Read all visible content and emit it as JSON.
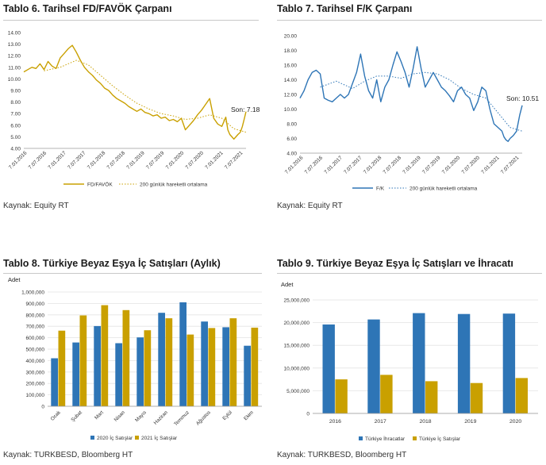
{
  "colors": {
    "gold": "#C9A000",
    "blue": "#2E75B6",
    "grid": "#e3e3e3",
    "axis": "#9a9a9a"
  },
  "panels": [
    {
      "title": "Tablo 6. Tarihsel FD/FAVÖK Çarpanı",
      "source": "Kaynak: Equity RT"
    },
    {
      "title": "Tablo 7. Tarihsel F/K Çarpanı",
      "source": "Kaynak: Equity RT"
    },
    {
      "title": "Tablo 8. Türkiye Beyaz Eşya İç Satışları (Aylık)",
      "source": "Kaynak: TURKBESD, Bloomberg HT"
    },
    {
      "title": "Tablo 9. Türkiye Beyaz Eşya İç Satışları ve İhracatı",
      "source": "Kaynak: TURKBESD, Bloomberg HT"
    }
  ],
  "chart_data": [
    {
      "type": "line",
      "ylim": [
        4,
        14
      ],
      "yticks": [
        "4.00",
        "5.00",
        "6.00",
        "7.00",
        "8.00",
        "9.00",
        "10.00",
        "11.00",
        "12.00",
        "13.00",
        "14.00"
      ],
      "xlim": [
        0,
        5.5
      ],
      "xticks": [
        "7.01.2016",
        "7.07.2016",
        "7.01.2017",
        "7.07.2017",
        "7.01.2018",
        "7.07.2018",
        "7.01.2019",
        "7.07.2019",
        "7.01.2020",
        "7.07.2020",
        "7.01.2021",
        "7.07.2021"
      ],
      "annotation": "Son: 7.18",
      "series": [
        {
          "name": "FD/FAVÖK",
          "style": "solid",
          "x": [
            0,
            0.1,
            0.2,
            0.3,
            0.4,
            0.5,
            0.6,
            0.7,
            0.8,
            0.9,
            1.0,
            1.1,
            1.2,
            1.3,
            1.4,
            1.5,
            1.6,
            1.7,
            1.8,
            1.9,
            2.0,
            2.1,
            2.2,
            2.3,
            2.4,
            2.5,
            2.6,
            2.7,
            2.8,
            2.9,
            3.0,
            3.1,
            3.2,
            3.3,
            3.4,
            3.5,
            3.6,
            3.7,
            3.8,
            3.9,
            4.0,
            4.1,
            4.2,
            4.3,
            4.4,
            4.5,
            4.6,
            4.7,
            4.8,
            4.9,
            5.0,
            5.05,
            5.1,
            5.15,
            5.2,
            5.25,
            5.3,
            5.36
          ],
          "y": [
            10.6,
            10.8,
            11.0,
            10.9,
            11.3,
            10.8,
            11.5,
            11.1,
            10.9,
            11.8,
            12.2,
            12.6,
            12.9,
            12.3,
            11.6,
            11.0,
            10.6,
            10.3,
            9.9,
            9.6,
            9.2,
            9.0,
            8.6,
            8.3,
            8.1,
            7.9,
            7.6,
            7.4,
            7.2,
            7.4,
            7.1,
            7.0,
            6.8,
            6.9,
            6.6,
            6.7,
            6.4,
            6.5,
            6.3,
            6.6,
            5.6,
            6.0,
            6.4,
            6.9,
            7.3,
            7.8,
            8.3,
            6.6,
            6.1,
            5.9,
            6.7,
            5.6,
            5.2,
            5.0,
            4.8,
            5.0,
            5.2,
            5.4
          ],
          "tail_x": [
            5.36,
            5.41,
            5.46,
            5.5
          ],
          "tail_y": [
            5.4,
            5.9,
            6.6,
            7.18
          ]
        },
        {
          "name": "200 günlük hareketli ortalama",
          "style": "dotted",
          "x": [
            0.5,
            0.9,
            1.3,
            1.6,
            1.9,
            2.2,
            2.5,
            2.8,
            3.1,
            3.4,
            3.7,
            4.0,
            4.3,
            4.6,
            4.9,
            5.2,
            5.5
          ],
          "y": [
            10.7,
            11.0,
            11.6,
            11.2,
            10.3,
            9.4,
            8.6,
            7.9,
            7.4,
            7.0,
            6.8,
            6.5,
            6.6,
            6.9,
            6.6,
            5.7,
            5.4
          ]
        }
      ]
    },
    {
      "type": "line",
      "ylim": [
        4,
        20
      ],
      "yticks": [
        "4.00",
        "6.00",
        "8.00",
        "10.00",
        "12.00",
        "14.00",
        "16.00",
        "18.00",
        "20.00"
      ],
      "xlim": [
        0,
        5.5
      ],
      "xticks": [
        "7.01.2016",
        "7.07.2016",
        "7.01.2017",
        "7.07.2017",
        "7.01.2018",
        "7.07.2018",
        "7.01.2019",
        "7.07.2019",
        "7.01.2020",
        "7.07.2020",
        "7.01.2021",
        "7.07.2021"
      ],
      "annotation": "Son: 10.51",
      "series": [
        {
          "name": "F/K",
          "style": "solid",
          "x": [
            0,
            0.1,
            0.2,
            0.3,
            0.4,
            0.5,
            0.6,
            0.7,
            0.8,
            0.9,
            1.0,
            1.1,
            1.2,
            1.3,
            1.4,
            1.5,
            1.6,
            1.7,
            1.8,
            1.9,
            2.0,
            2.1,
            2.2,
            2.3,
            2.4,
            2.5,
            2.6,
            2.7,
            2.8,
            2.9,
            3.0,
            3.1,
            3.2,
            3.3,
            3.4,
            3.5,
            3.6,
            3.7,
            3.8,
            3.9,
            4.0,
            4.1,
            4.2,
            4.3,
            4.4,
            4.5,
            4.6,
            4.7,
            4.8,
            4.9,
            5.0,
            5.05,
            5.1,
            5.15,
            5.2
          ],
          "y": [
            11.5,
            12.5,
            14.0,
            15.0,
            15.3,
            14.8,
            11.5,
            11.2,
            11.0,
            11.5,
            12.0,
            11.5,
            12.0,
            13.5,
            15.0,
            17.5,
            14.5,
            12.5,
            11.5,
            14.0,
            11.0,
            13.0,
            14.0,
            16.0,
            17.8,
            16.5,
            15.0,
            13.0,
            15.5,
            18.5,
            15.5,
            13.0,
            14.0,
            15.0,
            14.0,
            13.0,
            12.5,
            11.8,
            11.0,
            12.5,
            13.0,
            12.0,
            11.5,
            9.8,
            11.0,
            13.0,
            12.5,
            10.0,
            8.0,
            7.5,
            7.0,
            6.2,
            5.8,
            5.6,
            6.0
          ],
          "tail_x": [
            5.2,
            5.28,
            5.36,
            5.44,
            5.5
          ],
          "tail_y": [
            6.0,
            6.4,
            7.0,
            9.2,
            10.51
          ]
        },
        {
          "name": "200 günlük hareketli ortalama",
          "style": "dotted",
          "x": [
            0.5,
            0.9,
            1.3,
            1.6,
            1.9,
            2.2,
            2.5,
            2.8,
            3.1,
            3.4,
            3.7,
            4.0,
            4.3,
            4.6,
            4.9,
            5.2,
            5.5
          ],
          "y": [
            13.0,
            13.8,
            12.8,
            13.8,
            14.5,
            14.5,
            14.2,
            14.8,
            15.0,
            14.8,
            14.0,
            12.8,
            12.0,
            11.5,
            9.5,
            7.5,
            7.0
          ]
        }
      ]
    },
    {
      "type": "bar",
      "ylabel": "Adet",
      "ylim": [
        0,
        1000000
      ],
      "yticks": [
        "0",
        "100,000",
        "200,000",
        "300,000",
        "400,000",
        "500,000",
        "600,000",
        "700,000",
        "800,000",
        "900,000",
        "1,000,000"
      ],
      "categories": [
        "Ocak",
        "Şubat",
        "Mart",
        "Nisan",
        "Mayıs",
        "Haziran",
        "Temmuz",
        "Ağustos",
        "Eylül",
        "Ekim"
      ],
      "series": [
        {
          "name": "2020 İç Satışlar",
          "color": "#2E75B6",
          "values": [
            420000,
            558000,
            702000,
            552000,
            603000,
            818000,
            910000,
            742000,
            692000,
            530000
          ]
        },
        {
          "name": "2021 İç Satışlar",
          "color": "#C9A000",
          "values": [
            662000,
            795000,
            885000,
            842000,
            665000,
            770000,
            628000,
            685000,
            770000,
            688000
          ]
        }
      ]
    },
    {
      "type": "bar",
      "ylabel": "Adet",
      "ylim": [
        0,
        25000000
      ],
      "yticks": [
        "0",
        "5,000,000",
        "10,000,000",
        "15,000,000",
        "20,000,000",
        "25,000,000"
      ],
      "categories": [
        "2016",
        "2017",
        "2018",
        "2019",
        "2020"
      ],
      "series": [
        {
          "name": "Türkiye İhracatlar",
          "color": "#2E75B6",
          "values": [
            19600000,
            20700000,
            22100000,
            21900000,
            22000000
          ]
        },
        {
          "name": "Türkiye İç Satışlar",
          "color": "#C9A000",
          "values": [
            7500000,
            8500000,
            7100000,
            6700000,
            7800000
          ]
        }
      ]
    }
  ]
}
